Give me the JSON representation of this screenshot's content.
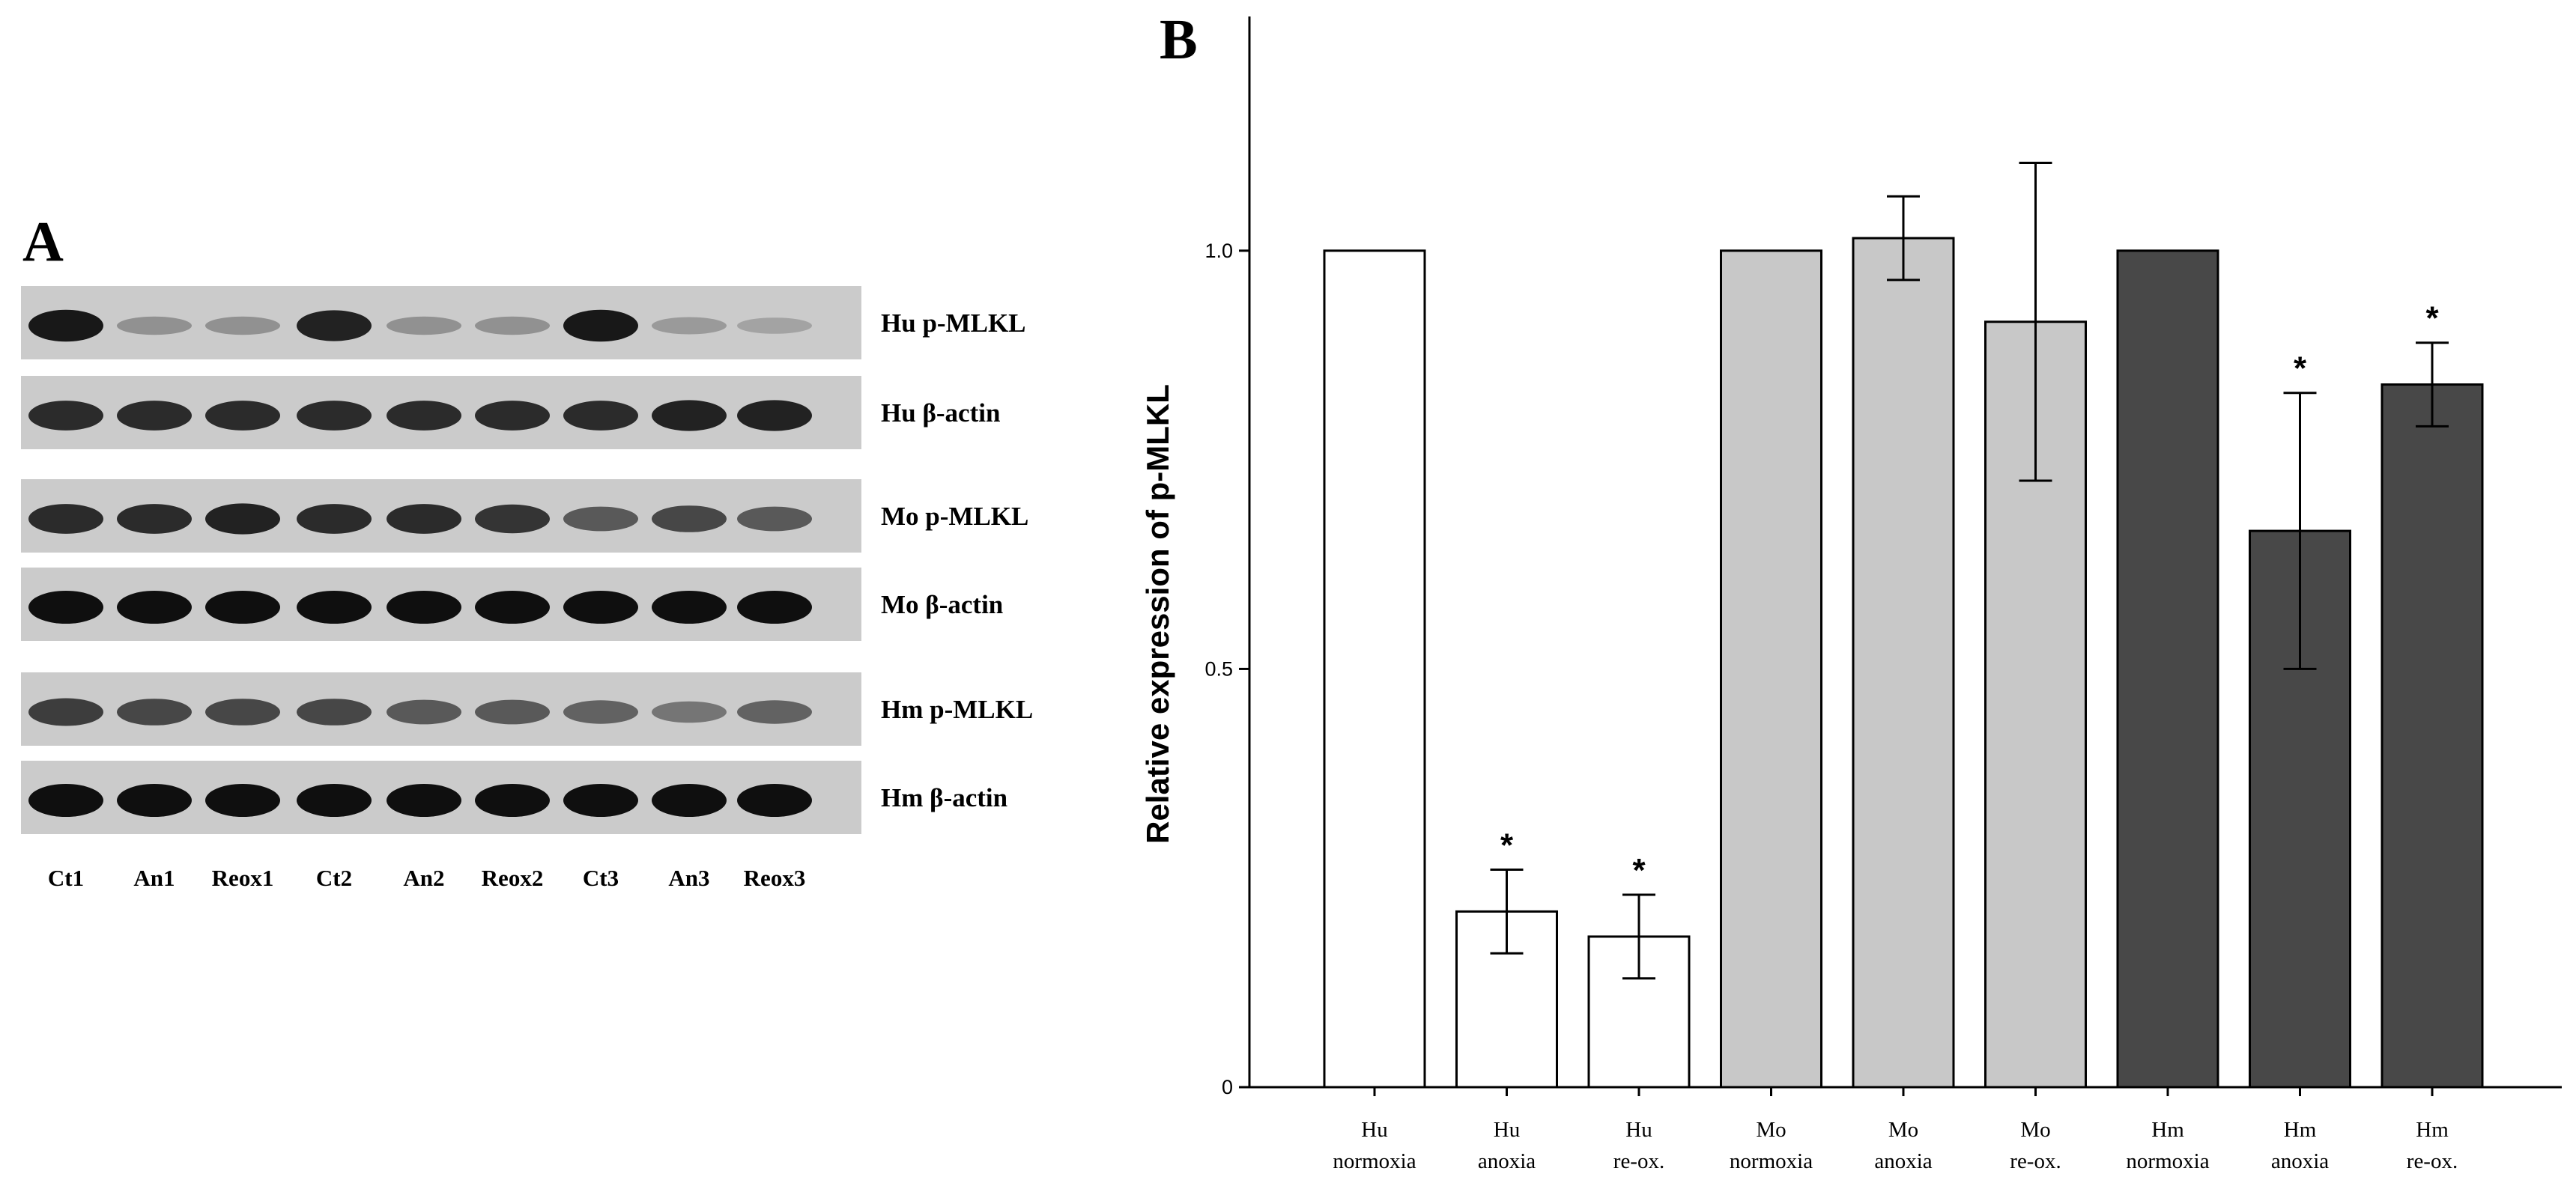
{
  "panel_a": {
    "letter": "A",
    "rows": [
      {
        "label": "Hu p-MLKL",
        "intensity": [
          0.95,
          0.3,
          0.3,
          0.9,
          0.3,
          0.3,
          0.95,
          0.25,
          0.2
        ]
      },
      {
        "label": "Hu β-actin",
        "intensity": [
          0.85,
          0.85,
          0.85,
          0.85,
          0.85,
          0.85,
          0.85,
          0.9,
          0.9
        ]
      },
      {
        "label": "Mo p-MLKL",
        "intensity": [
          0.85,
          0.85,
          0.9,
          0.85,
          0.85,
          0.8,
          0.6,
          0.7,
          0.6
        ]
      },
      {
        "label": "Mo β-actin",
        "intensity": [
          1.0,
          1.0,
          1.0,
          1.0,
          1.0,
          1.0,
          1.0,
          1.0,
          1.0
        ]
      },
      {
        "label": "Hm p-MLKL",
        "intensity": [
          0.75,
          0.7,
          0.7,
          0.7,
          0.6,
          0.6,
          0.55,
          0.45,
          0.55
        ]
      },
      {
        "label": "Hm β-actin",
        "intensity": [
          1.0,
          1.0,
          1.0,
          1.0,
          1.0,
          1.0,
          1.0,
          1.0,
          1.0
        ]
      }
    ],
    "lanes": [
      "Ct1",
      "An1",
      "Reox1",
      "Ct2",
      "An2",
      "Reox2",
      "Ct3",
      "An3",
      "Reox3"
    ]
  },
  "chart_data": {
    "type": "bar",
    "panel_letter": "B",
    "ylabel": "Relative expression of p-MLKL",
    "ylim": [
      0,
      1.28
    ],
    "yticks": [
      {
        "value": 0,
        "label": "0"
      },
      {
        "value": 0.5,
        "label": "0.5"
      },
      {
        "value": 1.0,
        "label": "1.0"
      }
    ],
    "categories": [
      {
        "line1": "Hu",
        "line2": "normoxia"
      },
      {
        "line1": "Hu",
        "line2": "anoxia"
      },
      {
        "line1": "Hu",
        "line2": "re-ox."
      },
      {
        "line1": "Mo",
        "line2": "normoxia"
      },
      {
        "line1": "Mo",
        "line2": "anoxia"
      },
      {
        "line1": "Mo",
        "line2": "re-ox."
      },
      {
        "line1": "Hm",
        "line2": "normoxia"
      },
      {
        "line1": "Hm",
        "line2": "anoxia"
      },
      {
        "line1": "Hm",
        "line2": "re-ox."
      }
    ],
    "values": [
      1.0,
      0.21,
      0.18,
      1.0,
      1.015,
      0.915,
      1.0,
      0.665,
      0.84
    ],
    "errors": [
      0,
      0.05,
      0.05,
      0,
      0.05,
      0.19,
      0,
      0.165,
      0.05
    ],
    "significant": [
      false,
      true,
      true,
      false,
      false,
      false,
      false,
      true,
      true
    ],
    "star_symbol": "*",
    "colors": [
      "#ffffff",
      "#ffffff",
      "#ffffff",
      "#c8c8c8",
      "#c8c8c8",
      "#c8c8c8",
      "#484848",
      "#484848",
      "#484848"
    ],
    "grid": false,
    "legend": "none"
  }
}
